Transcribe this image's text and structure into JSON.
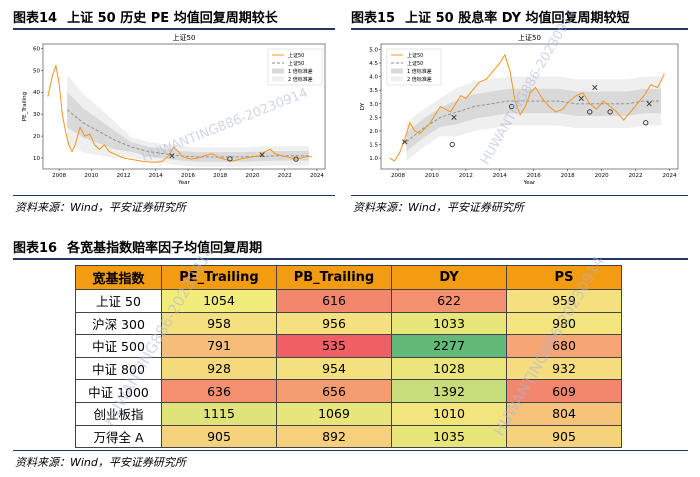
{
  "fig14": {
    "title_num": "图表14",
    "title_text": "上证 50 历史 PE 均值回复周期较长",
    "source": "资料来源：Wind，平安证券研究所"
  },
  "fig15": {
    "title_num": "图表15",
    "title_text": "上证 50 股息率 DY 均值回复周期较短",
    "source": "资料来源：Wind，平安证券研究所"
  },
  "fig16": {
    "title_num": "图表16",
    "title_text": "各宽基指数赔率因子均值回复周期",
    "source": "资料来源：Wind，平安证券研究所"
  },
  "watermarks": [
    "HUWANTING886-20230914",
    "HUWANTING886-20230914",
    "HUWANTING886-20230914",
    "HUWANTING886-20230914"
  ],
  "chart_data": [
    {
      "type": "line",
      "title": "上证50",
      "xlabel": "Year",
      "ylabel": "PE_Trailing",
      "x_ticks": [
        "2008",
        "2010",
        "2012",
        "2014",
        "2016",
        "2018",
        "2020",
        "2022",
        "2024"
      ],
      "y_ticks": [
        "10",
        "20",
        "30",
        "40",
        "50",
        "60"
      ],
      "xlim": [
        2007.0,
        2024.5
      ],
      "ylim": [
        5,
        62
      ],
      "legend": [
        "上证50",
        "上证50",
        "1 倍标准差",
        "2 倍标准差"
      ],
      "legend_position": "top-right",
      "colors": {
        "series": "#f7941d",
        "mean": "#888888",
        "band1": "#d9d9d9",
        "band2": "#efefef",
        "marker": "#333333"
      },
      "series": [
        {
          "name": "上证50",
          "x": [
            2007.3,
            2007.6,
            2007.8,
            2008.0,
            2008.2,
            2008.4,
            2008.6,
            2008.8,
            2009.0,
            2009.3,
            2009.6,
            2009.9,
            2010.2,
            2010.5,
            2010.8,
            2011.1,
            2011.4,
            2011.7,
            2012.0,
            2012.4,
            2012.8,
            2013.2,
            2013.6,
            2014.0,
            2014.4,
            2014.8,
            2015.1,
            2015.4,
            2015.6,
            2015.9,
            2016.2,
            2016.6,
            2017.0,
            2017.5,
            2018.0,
            2018.4,
            2018.8,
            2019.2,
            2019.6,
            2020.0,
            2020.4,
            2020.8,
            2021.1,
            2021.4,
            2021.8,
            2022.2,
            2022.6,
            2023.0,
            2023.4,
            2023.7
          ],
          "values": [
            38,
            48,
            52,
            44,
            30,
            22,
            16,
            13,
            16,
            24,
            20,
            21,
            16,
            14,
            16,
            13,
            12,
            11,
            10,
            9.5,
            9,
            8.5,
            8.2,
            8,
            8.5,
            11,
            15,
            13,
            11,
            10,
            9.5,
            10,
            11,
            12,
            10,
            9.2,
            8.6,
            9.5,
            10,
            10.5,
            11,
            13,
            14,
            12,
            11,
            10.5,
            9.5,
            10,
            10.8,
            10.5
          ]
        },
        {
          "name": "上证50 均值",
          "x": [
            2008.5,
            2009.5,
            2010.5,
            2011.5,
            2012.5,
            2013.5,
            2014.5,
            2015.5,
            2016.5,
            2017.5,
            2018.5,
            2019.5,
            2020.5,
            2021.5,
            2022.5,
            2023.5
          ],
          "values": [
            32,
            26,
            22,
            18,
            15,
            13,
            12,
            11,
            10.5,
            10.5,
            10.5,
            10.5,
            10.8,
            11,
            11,
            11
          ]
        }
      ],
      "markers": [
        {
          "type": "x",
          "x": 2015.0,
          "y": 11
        },
        {
          "type": "circle",
          "x": 2018.6,
          "y": 9.6
        },
        {
          "type": "x",
          "x": 2020.6,
          "y": 11.5
        },
        {
          "type": "circle",
          "x": 2022.7,
          "y": 9.5
        }
      ]
    },
    {
      "type": "line",
      "title": "上证50",
      "xlabel": "Year",
      "ylabel": "DY",
      "x_ticks": [
        "2008",
        "2010",
        "2012",
        "2014",
        "2016",
        "2018",
        "2020",
        "2022",
        "2024"
      ],
      "y_ticks": [
        "1.0",
        "1.5",
        "2.0",
        "2.5",
        "3.0",
        "3.5",
        "4.0",
        "4.5",
        "5.0"
      ],
      "xlim": [
        2007.0,
        2024.5
      ],
      "ylim": [
        0.6,
        5.2
      ],
      "legend": [
        "上证50",
        "上证50",
        "1 倍标准差",
        "2 倍标准差"
      ],
      "legend_position": "top-left",
      "colors": {
        "series": "#f7941d",
        "mean": "#888888",
        "band1": "#d9d9d9",
        "band2": "#efefef",
        "marker": "#333333"
      },
      "series": [
        {
          "name": "上证50",
          "x": [
            2007.5,
            2007.8,
            2008.1,
            2008.4,
            2008.7,
            2009.0,
            2009.3,
            2009.6,
            2009.9,
            2010.2,
            2010.5,
            2010.8,
            2011.1,
            2011.4,
            2011.7,
            2012.0,
            2012.4,
            2012.8,
            2013.2,
            2013.6,
            2014.0,
            2014.3,
            2014.6,
            2014.9,
            2015.2,
            2015.5,
            2015.8,
            2016.1,
            2016.5,
            2016.9,
            2017.3,
            2017.7,
            2018.1,
            2018.5,
            2018.9,
            2019.3,
            2019.7,
            2020.1,
            2020.5,
            2020.9,
            2021.3,
            2021.7,
            2022.1,
            2022.5,
            2022.9,
            2023.3,
            2023.7
          ],
          "values": [
            1.0,
            0.9,
            1.2,
            1.7,
            2.3,
            2.0,
            1.9,
            2.1,
            2.3,
            2.6,
            2.9,
            2.8,
            2.7,
            3.0,
            3.3,
            3.2,
            3.5,
            3.8,
            3.9,
            4.2,
            4.5,
            4.8,
            4.2,
            3.1,
            2.6,
            2.9,
            3.4,
            3.6,
            3.2,
            2.9,
            2.7,
            2.8,
            3.1,
            3.3,
            3.4,
            3.0,
            2.8,
            3.1,
            2.9,
            2.7,
            2.4,
            2.7,
            3.0,
            3.3,
            3.7,
            3.6,
            4.1
          ]
        },
        {
          "name": "上证50 均值",
          "x": [
            2008.5,
            2009.5,
            2010.5,
            2011.5,
            2012.5,
            2013.5,
            2014.5,
            2015.5,
            2016.5,
            2017.5,
            2018.5,
            2019.5,
            2020.5,
            2021.5,
            2022.5,
            2023.5
          ],
          "values": [
            1.6,
            2.1,
            2.5,
            2.7,
            2.9,
            3.0,
            3.1,
            3.1,
            3.1,
            3.1,
            3.0,
            3.0,
            3.0,
            3.0,
            3.1,
            3.1
          ]
        }
      ],
      "markers": [
        {
          "type": "x",
          "x": 2008.4,
          "y": 1.6
        },
        {
          "type": "circle",
          "x": 2011.2,
          "y": 1.5
        },
        {
          "type": "x",
          "x": 2011.3,
          "y": 2.5
        },
        {
          "type": "circle",
          "x": 2014.7,
          "y": 2.9
        },
        {
          "type": "circle",
          "x": 2019.3,
          "y": 2.7
        },
        {
          "type": "x",
          "x": 2018.8,
          "y": 3.2
        },
        {
          "type": "x",
          "x": 2019.6,
          "y": 3.6
        },
        {
          "type": "circle",
          "x": 2020.5,
          "y": 2.7
        },
        {
          "type": "x",
          "x": 2022.8,
          "y": 3.0
        },
        {
          "type": "circle",
          "x": 2022.6,
          "y": 2.3
        }
      ]
    },
    {
      "type": "table",
      "headers": [
        "宽基指数",
        "PE_Trailing",
        "PB_Trailing",
        "DY",
        "PS"
      ],
      "rows": [
        {
          "label": "上证 50",
          "values": [
            "1054",
            "616",
            "622",
            "959"
          ],
          "colors": [
            "#f2ec7c",
            "#f2876d",
            "#f3906f",
            "#f5e07f"
          ]
        },
        {
          "label": "沪深 300",
          "values": [
            "958",
            "956",
            "1033",
            "980"
          ],
          "colors": [
            "#f5e07f",
            "#f5e07f",
            "#e8e67b",
            "#f5e580"
          ]
        },
        {
          "label": "中证 500",
          "values": [
            "791",
            "535",
            "2277",
            "680"
          ],
          "colors": [
            "#f6bd79",
            "#f05f63",
            "#63b978",
            "#f6a674"
          ]
        },
        {
          "label": "中证 800",
          "values": [
            "928",
            "954",
            "1028",
            "932"
          ],
          "colors": [
            "#f5d97d",
            "#f5e07f",
            "#eae67b",
            "#f5dc7e"
          ]
        },
        {
          "label": "中证 1000",
          "values": [
            "636",
            "656",
            "1392",
            "609"
          ],
          "colors": [
            "#f4906f",
            "#f49c71",
            "#c7dd7b",
            "#f3876d"
          ]
        },
        {
          "label": "创业板指",
          "values": [
            "1115",
            "1069",
            "1010",
            "804"
          ],
          "colors": [
            "#e0e37a",
            "#e8e67b",
            "#f2e57e",
            "#f6c37a"
          ]
        },
        {
          "label": "万得全 A",
          "values": [
            "905",
            "892",
            "1035",
            "905"
          ],
          "colors": [
            "#f6d27c",
            "#f6d07c",
            "#e8e67b",
            "#f6d27c"
          ]
        }
      ]
    }
  ]
}
